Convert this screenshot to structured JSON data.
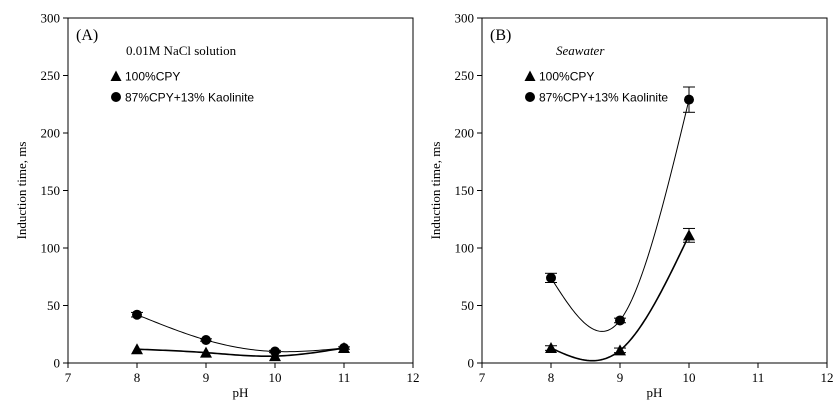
{
  "chart_data": [
    {
      "type": "line",
      "panel_label": "(A)",
      "annotation": "0.01M NaCl solution",
      "annotation_style": "normal",
      "xlabel": "pH",
      "ylabel": "Induction time, ms",
      "xlim": [
        7,
        12
      ],
      "ylim": [
        0,
        300
      ],
      "x_ticks": [
        7,
        8,
        9,
        10,
        11,
        12
      ],
      "y_ticks": [
        0,
        50,
        100,
        150,
        200,
        250,
        300
      ],
      "grid": false,
      "legend_position": "top-left",
      "series": [
        {
          "name": "100%CPY",
          "marker": "triangle",
          "curve_width": 1.6,
          "x": [
            8,
            9,
            10,
            11
          ],
          "values": [
            12,
            9,
            6,
            13
          ],
          "error": [
            0,
            0,
            0,
            0
          ]
        },
        {
          "name": "87%CPY+13% Kaolinite",
          "marker": "circle",
          "curve_width": 1.0,
          "x": [
            8,
            9,
            10,
            11
          ],
          "values": [
            42,
            20,
            10,
            13
          ],
          "error": [
            2,
            1,
            1,
            1
          ]
        }
      ]
    },
    {
      "type": "line",
      "panel_label": "(B)",
      "annotation": "Seawater",
      "annotation_style": "italic",
      "xlabel": "pH",
      "ylabel": "Induction time, ms",
      "xlim": [
        7,
        12
      ],
      "ylim": [
        0,
        300
      ],
      "x_ticks": [
        7,
        8,
        9,
        10,
        11,
        12
      ],
      "y_ticks": [
        0,
        50,
        100,
        150,
        200,
        250,
        300
      ],
      "grid": false,
      "legend_position": "top-left",
      "series": [
        {
          "name": "100%CPY",
          "marker": "triangle",
          "curve_width": 1.6,
          "x": [
            8,
            9,
            10
          ],
          "values": [
            13,
            11,
            111
          ],
          "error": [
            2,
            2,
            6
          ]
        },
        {
          "name": "87%CPY+13% Kaolinite",
          "marker": "circle",
          "curve_width": 1.0,
          "x": [
            8,
            9,
            10
          ],
          "values": [
            74,
            37,
            229
          ],
          "error": [
            4,
            2,
            11
          ]
        }
      ]
    }
  ]
}
